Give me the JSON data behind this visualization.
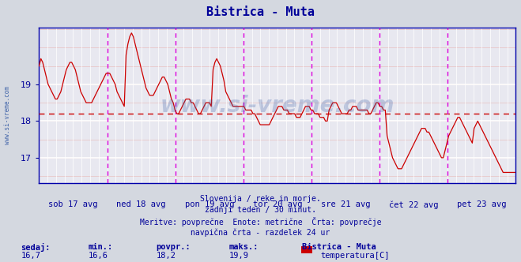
{
  "title": "Bistrica - Muta",
  "title_color": "#000099",
  "bg_color": "#d4d8e0",
  "plot_bg_color": "#e8e8f0",
  "line_color": "#cc0000",
  "avg_line_value": 18.2,
  "ylim": [
    16.3,
    20.55
  ],
  "yticks": [
    17,
    18,
    19
  ],
  "tick_color": "#000099",
  "watermark": "www.si-vreme.com",
  "watermark_color": "#4466aa",
  "watermark_alpha": 0.28,
  "subtitle_lines": [
    "Slovenija / reke in morje.",
    "zadnji teden / 30 minut.",
    "Meritve: povprečne  Enote: metrične  Črta: povprečje",
    "navpična črta - razdelek 24 ur"
  ],
  "subtitle_color": "#000099",
  "stats_labels": [
    "sedaj:",
    "min.:",
    "povpr.:",
    "maks.:"
  ],
  "stats_values": [
    "16,7",
    "16,6",
    "18,2",
    "19,9"
  ],
  "legend_station": "Bistrica - Muta",
  "legend_label": "temperatura[C]",
  "legend_color": "#cc0000",
  "stats_color": "#000099",
  "day_labels": [
    "sob 17 avg",
    "ned 18 avg",
    "pon 19 avg",
    "tor 20 avg",
    "sre 21 avg",
    "čet 22 avg",
    "pet 23 avg"
  ],
  "left_label": "www.si-vreme.com",
  "left_label_color": "#4466aa",
  "temperature_data": [
    19.5,
    19.7,
    19.6,
    19.4,
    19.2,
    19.0,
    18.9,
    18.8,
    18.7,
    18.6,
    18.6,
    18.7,
    18.8,
    19.0,
    19.2,
    19.4,
    19.5,
    19.6,
    19.6,
    19.5,
    19.4,
    19.2,
    19.0,
    18.8,
    18.7,
    18.6,
    18.5,
    18.5,
    18.5,
    18.5,
    18.6,
    18.7,
    18.8,
    18.9,
    19.0,
    19.1,
    19.2,
    19.3,
    19.3,
    19.3,
    19.2,
    19.1,
    19.0,
    18.8,
    18.7,
    18.6,
    18.5,
    18.4,
    19.8,
    20.1,
    20.3,
    20.4,
    20.3,
    20.1,
    19.9,
    19.7,
    19.5,
    19.3,
    19.1,
    18.9,
    18.8,
    18.7,
    18.7,
    18.7,
    18.8,
    18.9,
    19.0,
    19.1,
    19.2,
    19.2,
    19.1,
    19.0,
    18.8,
    18.6,
    18.5,
    18.3,
    18.2,
    18.2,
    18.3,
    18.4,
    18.5,
    18.6,
    18.6,
    18.6,
    18.5,
    18.5,
    18.4,
    18.3,
    18.2,
    18.2,
    18.3,
    18.4,
    18.5,
    18.5,
    18.5,
    18.4,
    19.4,
    19.6,
    19.7,
    19.6,
    19.5,
    19.3,
    19.1,
    18.8,
    18.7,
    18.6,
    18.5,
    18.4,
    18.4,
    18.4,
    18.4,
    18.4,
    18.4,
    18.4,
    18.3,
    18.3,
    18.3,
    18.3,
    18.2,
    18.2,
    18.1,
    18.0,
    17.9,
    17.9,
    17.9,
    17.9,
    17.9,
    17.9,
    18.0,
    18.1,
    18.2,
    18.3,
    18.4,
    18.4,
    18.4,
    18.3,
    18.3,
    18.3,
    18.2,
    18.2,
    18.2,
    18.2,
    18.1,
    18.1,
    18.1,
    18.2,
    18.3,
    18.4,
    18.4,
    18.4,
    18.3,
    18.3,
    18.2,
    18.2,
    18.2,
    18.1,
    18.1,
    18.1,
    18.0,
    18.0,
    18.3,
    18.4,
    18.5,
    18.5,
    18.5,
    18.4,
    18.3,
    18.2,
    18.2,
    18.2,
    18.2,
    18.3,
    18.3,
    18.4,
    18.4,
    18.4,
    18.3,
    18.3,
    18.3,
    18.3,
    18.3,
    18.3,
    18.2,
    18.2,
    18.3,
    18.4,
    18.5,
    18.5,
    18.4,
    18.4,
    18.3,
    18.3,
    17.6,
    17.4,
    17.2,
    17.0,
    16.9,
    16.8,
    16.7,
    16.7,
    16.7,
    16.8,
    16.9,
    17.0,
    17.1,
    17.2,
    17.3,
    17.4,
    17.5,
    17.6,
    17.7,
    17.8,
    17.8,
    17.8,
    17.7,
    17.7,
    17.6,
    17.5,
    17.4,
    17.3,
    17.2,
    17.1,
    17.0,
    17.0,
    17.2,
    17.4,
    17.6,
    17.7,
    17.8,
    17.9,
    18.0,
    18.1,
    18.1,
    18.0,
    17.9,
    17.8,
    17.7,
    17.6,
    17.5,
    17.4,
    17.8,
    17.9,
    18.0,
    17.9,
    17.8,
    17.7,
    17.6,
    17.5,
    17.4,
    17.3,
    17.2,
    17.1,
    17.0,
    16.9,
    16.8,
    16.7,
    16.6,
    16.6,
    16.6,
    16.6,
    16.6,
    16.6,
    16.6,
    16.6
  ]
}
